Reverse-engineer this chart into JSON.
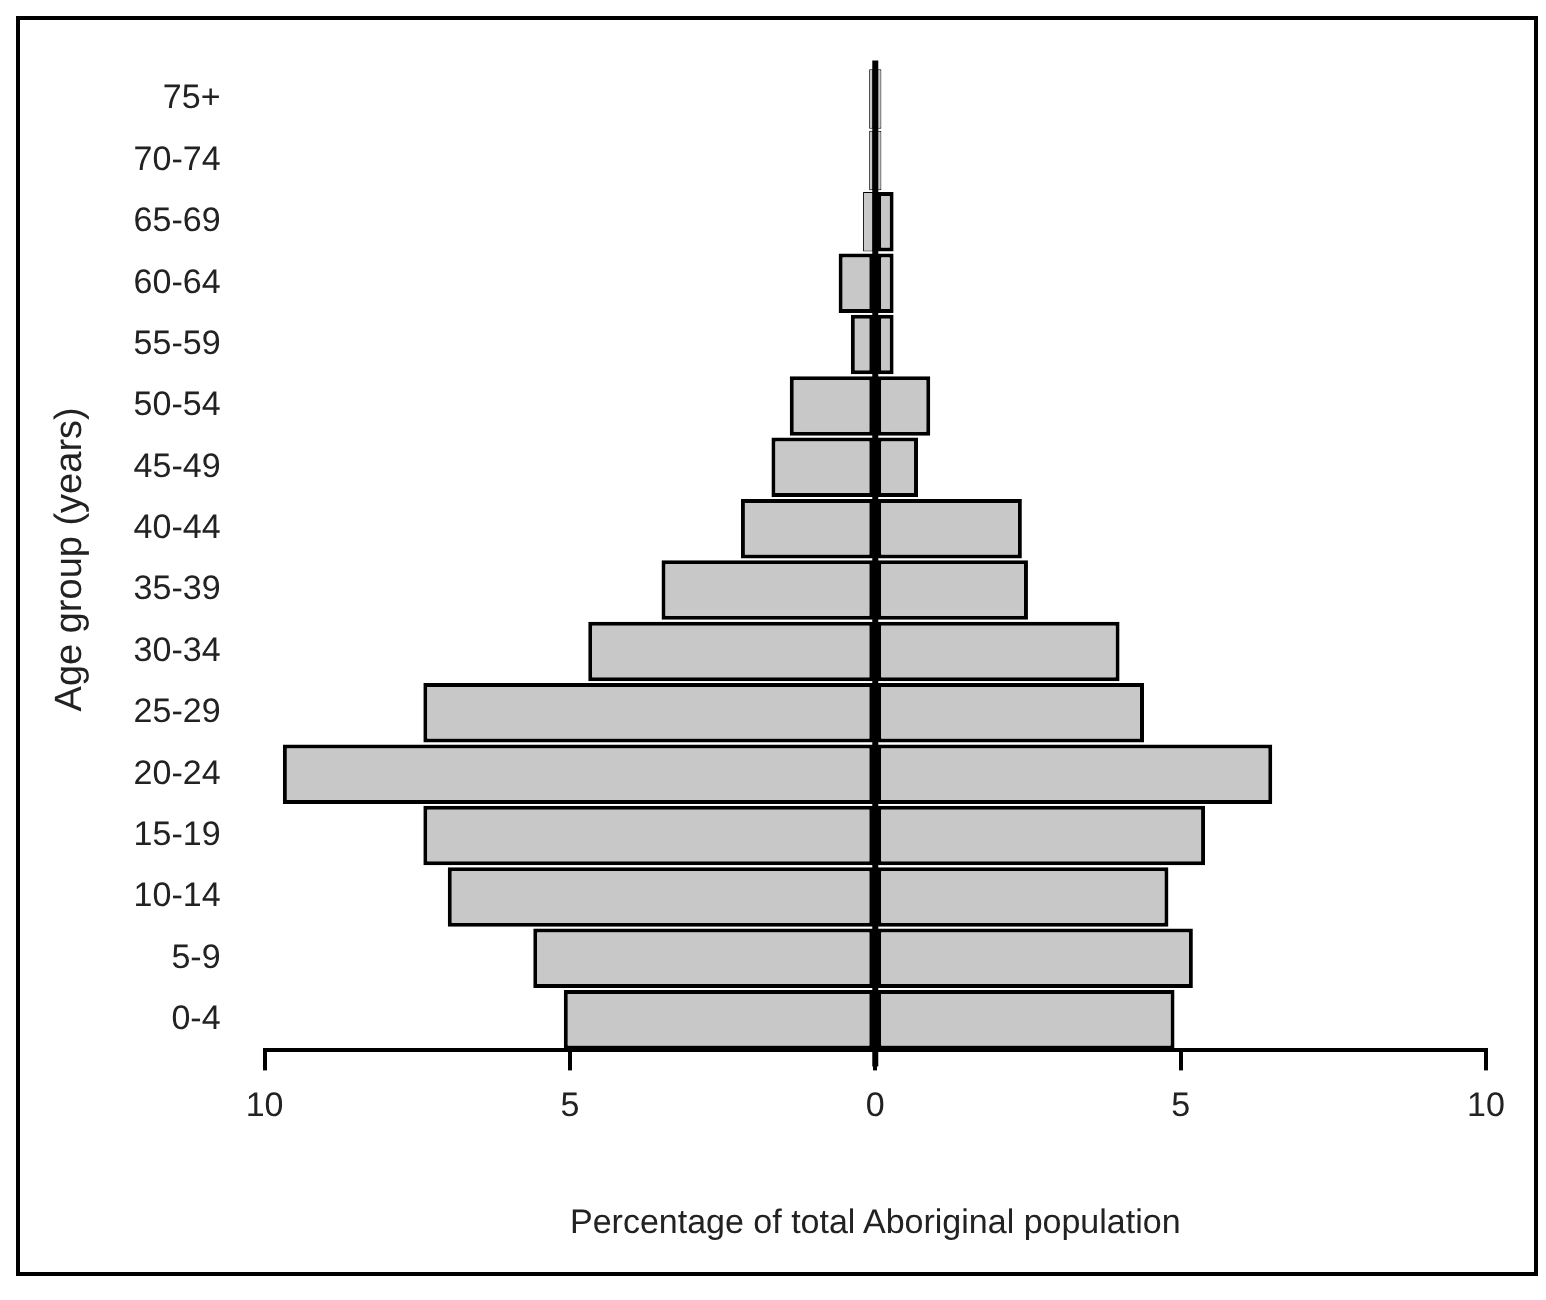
{
  "chart_data": {
    "type": "bar",
    "orientation": "horizontal",
    "stacked": true,
    "xlabel": "Percentage of total Aboriginal population",
    "ylabel": "Age group (years)",
    "categories": [
      "75+",
      "70-74",
      "65-69",
      "60-64",
      "55-59",
      "50-54",
      "45-49",
      "40-44",
      "35-39",
      "30-34",
      "25-29",
      "20-24",
      "15-19",
      "10-14",
      "5-9",
      "0-4"
    ],
    "series": [
      {
        "color": "#c8c8c8",
        "values": [
          -0.1,
          -0.1,
          -0.2,
          -0.6,
          -0.4,
          -1.4,
          -1.7,
          -2.2,
          -3.5,
          -4.7,
          -7.4,
          -9.7,
          -7.4,
          -7.0,
          -5.6,
          -5.1
        ]
      },
      {
        "color": "#c8c8c8",
        "values": [
          0.1,
          0.1,
          0.3,
          0.3,
          0.3,
          0.9,
          0.7,
          2.4,
          2.5,
          4.0,
          4.4,
          6.5,
          5.4,
          4.8,
          5.2,
          4.9
        ]
      }
    ],
    "xlim": [
      -10,
      10
    ],
    "xticks": [
      {
        "value": -10,
        "label": "10"
      },
      {
        "value": -5,
        "label": "5"
      },
      0,
      5,
      10
    ],
    "ref_lines": [
      {
        "axis": "x",
        "value": 0
      }
    ],
    "grid": false,
    "legend": false
  }
}
